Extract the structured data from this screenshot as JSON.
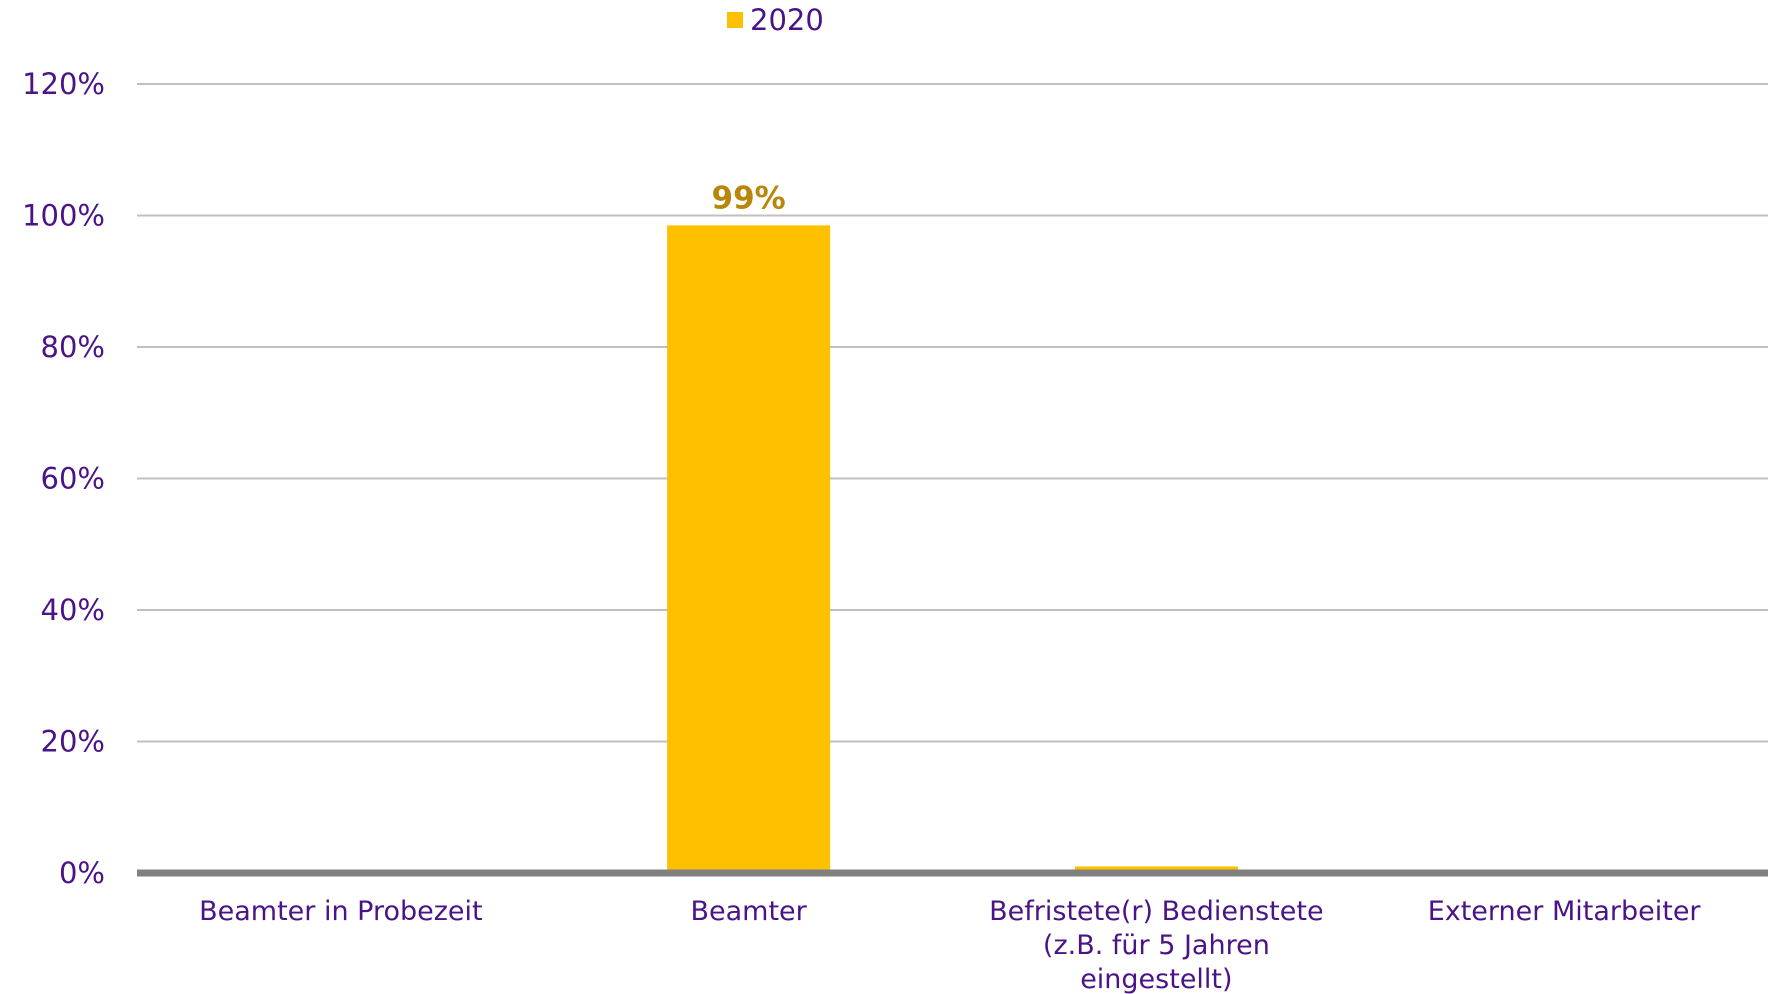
{
  "chart_data": {
    "type": "bar",
    "title": "",
    "xlabel": "",
    "ylabel": "",
    "categories": [
      [
        "Beamter in Probezeit"
      ],
      [
        "Beamter"
      ],
      [
        "Befristete(r) Bedienstete",
        "(z.B. für 5 Jahren",
        "eingestellt)"
      ],
      [
        "Externer Mitarbeiter"
      ]
    ],
    "series": [
      {
        "name": "2020",
        "color": "#ffc000",
        "values": [
          0,
          0.985,
          0.01,
          0
        ],
        "data_labels": [
          "",
          "99%",
          "",
          ""
        ]
      }
    ],
    "ylim": [
      0,
      1.2
    ],
    "y_ticks": [
      {
        "value": 0,
        "label": "0%"
      },
      {
        "value": 0.2,
        "label": "20%"
      },
      {
        "value": 0.4,
        "label": "40%"
      },
      {
        "value": 0.6,
        "label": "60%"
      },
      {
        "value": 0.8,
        "label": "80%"
      },
      {
        "value": 1.0,
        "label": "100%"
      },
      {
        "value": 1.2,
        "label": "120%"
      }
    ],
    "grid": true,
    "legend_position": "top-center",
    "colors": {
      "text": "#4a1486",
      "grid": "#c0c0c0",
      "axis": "#808080",
      "data_label": "#b8860b"
    }
  }
}
